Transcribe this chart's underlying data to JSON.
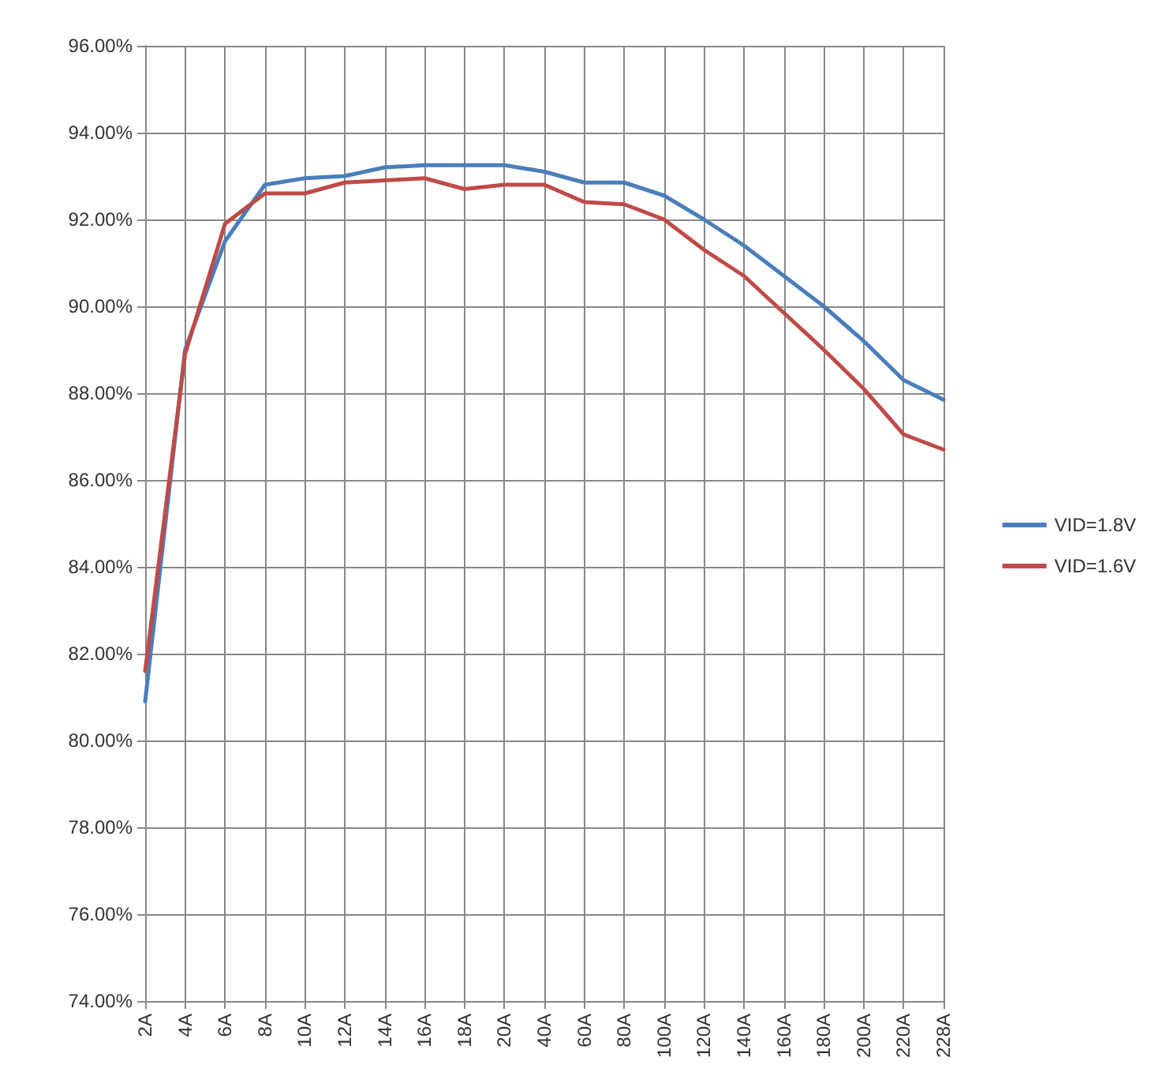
{
  "chart_data": {
    "type": "line",
    "categories": [
      "2A",
      "4A",
      "6A",
      "8A",
      "10A",
      "12A",
      "14A",
      "16A",
      "18A",
      "20A",
      "40A",
      "60A",
      "80A",
      "100A",
      "120A",
      "140A",
      "160A",
      "180A",
      "200A",
      "220A",
      "228A"
    ],
    "series": [
      {
        "name": "VID=1.8V",
        "color": "#4a7ebb",
        "values": [
          80.9,
          89.0,
          91.5,
          92.8,
          92.95,
          93.0,
          93.2,
          93.25,
          93.25,
          93.25,
          93.1,
          92.85,
          92.85,
          92.55,
          92.0,
          91.4,
          90.7,
          90.0,
          89.2,
          88.3,
          87.85
        ]
      },
      {
        "name": "VID=1.6V",
        "color": "#be4b48",
        "values": [
          81.6,
          88.9,
          91.9,
          92.6,
          92.6,
          92.85,
          92.9,
          92.95,
          92.7,
          92.8,
          92.8,
          92.4,
          92.35,
          92.0,
          91.3,
          90.7,
          89.85,
          89.0,
          88.1,
          87.05,
          86.7
        ]
      }
    ],
    "ylim": [
      74,
      96
    ],
    "yticks": [
      {
        "value": 74,
        "label": "74.00%"
      },
      {
        "value": 76,
        "label": "76.00%"
      },
      {
        "value": 78,
        "label": "78.00%"
      },
      {
        "value": 80,
        "label": "80.00%"
      },
      {
        "value": 82,
        "label": "82.00%"
      },
      {
        "value": 84,
        "label": "84.00%"
      },
      {
        "value": 86,
        "label": "86.00%"
      },
      {
        "value": 88,
        "label": "88.00%"
      },
      {
        "value": 90,
        "label": "90.00%"
      },
      {
        "value": 92,
        "label": "92.00%"
      },
      {
        "value": 94,
        "label": "94.00%"
      },
      {
        "value": 96,
        "label": "96.00%"
      }
    ],
    "grid": true,
    "legend": "right",
    "marker": "none",
    "line_style": "solid"
  }
}
